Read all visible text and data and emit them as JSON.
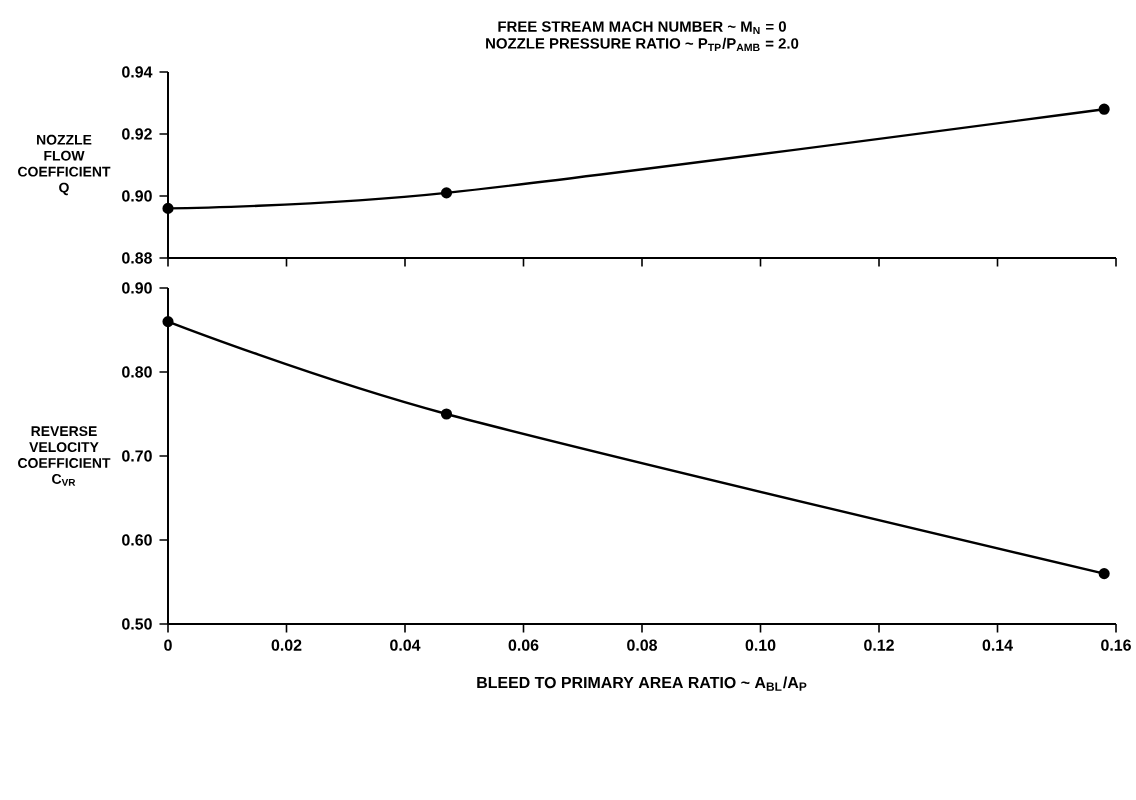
{
  "chart_data": [
    {
      "type": "line",
      "title": "FREE STREAM MACH NUMBER ~ M$_{N}$ = 0",
      "subtitle": "NOZZLE PRESSURE RATIO ~ P$_{TP}$/P$_{AMB}$ = 2.0",
      "ylabel": "NOZZLE FLOW COEFFICIENT Q",
      "x": [
        0,
        0.047,
        0.158
      ],
      "series": [
        {
          "color": "#000000",
          "values": [
            0.896,
            0.901,
            0.928
          ]
        }
      ],
      "xlim": [
        0,
        0.16
      ],
      "xticks": [
        0,
        0.02,
        0.04,
        0.06,
        0.08,
        0.1,
        0.12,
        0.14,
        0.16
      ],
      "ylim": [
        0.88,
        0.94
      ],
      "yticks": [
        0.88,
        {
          "value": 0.9,
          "label": "0.90"
        },
        0.92,
        0.94
      ],
      "tick_labels": "y",
      "marker": "circle",
      "line_style": "solid"
    },
    {
      "type": "line",
      "xlabel": "BLEED TO PRIMARY AREA RATIO ~ A$_{BL}$/A$_{P}$",
      "ylabel": "REVERSE VELOCITY COEFFICIENT C$_{VR}$",
      "x": [
        0,
        0.047,
        0.158
      ],
      "series": [
        {
          "color": "#000000",
          "values": [
            0.86,
            0.75,
            0.56
          ]
        }
      ],
      "xlim": [
        0,
        0.16
      ],
      "xticks": [
        0,
        0.02,
        0.04,
        0.06,
        0.08,
        {
          "value": 0.1,
          "label": "0.10"
        },
        0.12,
        0.14,
        0.16
      ],
      "ylim": [
        0.5,
        0.9
      ],
      "yticks": [
        {
          "value": 0.5,
          "label": "0.50"
        },
        {
          "value": 0.6,
          "label": "0.60"
        },
        {
          "value": 0.7,
          "label": "0.70"
        },
        {
          "value": 0.8,
          "label": "0.80"
        },
        {
          "value": 0.9,
          "label": "0.90"
        }
      ],
      "marker": "circle",
      "line_style": "solid"
    }
  ]
}
